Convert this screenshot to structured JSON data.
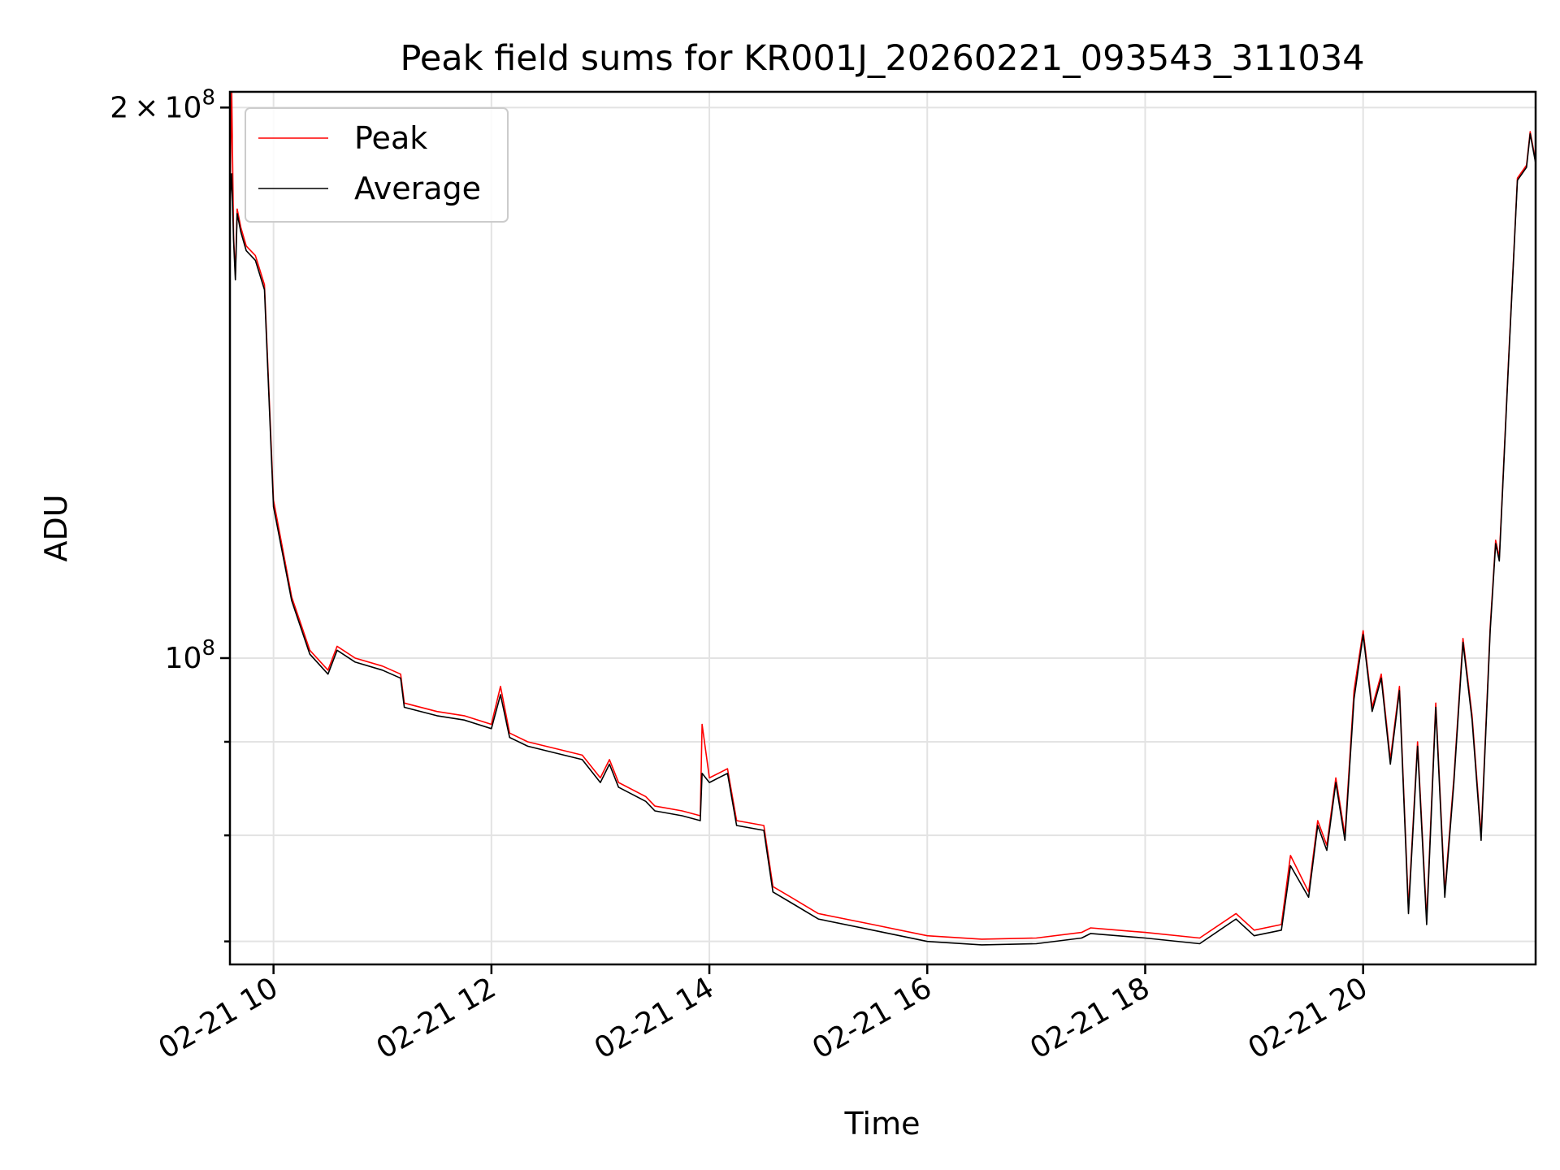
{
  "chart_data": {
    "type": "line",
    "title": "Peak field sums for KR001J_20260221_093543_311034",
    "xlabel": "Time",
    "ylabel": "ADU",
    "yscale": "log",
    "ylim": [
      68000000,
      204000000
    ],
    "xlim": [
      "2026-02-21 09:36",
      "2026-02-21 21:35"
    ],
    "grid": true,
    "legend_position": "upper-left",
    "x_ticks": [
      "02-21 10",
      "02-21 12",
      "02-21 14",
      "02-21 16",
      "02-21 18",
      "02-21 20"
    ],
    "x_tick_values": [
      "2026-02-21 10:00",
      "2026-02-21 12:00",
      "2026-02-21 14:00",
      "2026-02-21 16:00",
      "2026-02-21 18:00",
      "2026-02-21 20:00"
    ],
    "y_ticks": [
      {
        "value": 200000000,
        "mantissa": "2",
        "times": "×",
        "base": "10",
        "exp": "8"
      },
      {
        "value": 100000000,
        "mantissa": "",
        "times": "",
        "base": "10",
        "exp": "8"
      }
    ],
    "y_minor_ticks": [
      70000000,
      80000000,
      90000000
    ],
    "series": [
      {
        "name": "Peak",
        "color": "#ff0000",
        "x": [
          "2026-02-21 09:36",
          "2026-02-21 09:37",
          "2026-02-21 09:38",
          "2026-02-21 09:39",
          "2026-02-21 09:40",
          "2026-02-21 09:42",
          "2026-02-21 09:45",
          "2026-02-21 09:50",
          "2026-02-21 09:55",
          "2026-02-21 10:00",
          "2026-02-21 10:10",
          "2026-02-21 10:20",
          "2026-02-21 10:30",
          "2026-02-21 10:35",
          "2026-02-21 10:45",
          "2026-02-21 11:00",
          "2026-02-21 11:10",
          "2026-02-21 11:12",
          "2026-02-21 11:30",
          "2026-02-21 11:45",
          "2026-02-21 12:00",
          "2026-02-21 12:05",
          "2026-02-21 12:10",
          "2026-02-21 12:20",
          "2026-02-21 12:40",
          "2026-02-21 12:50",
          "2026-02-21 13:00",
          "2026-02-21 13:05",
          "2026-02-21 13:10",
          "2026-02-21 13:25",
          "2026-02-21 13:30",
          "2026-02-21 13:45",
          "2026-02-21 13:55",
          "2026-02-21 13:56",
          "2026-02-21 14:00",
          "2026-02-21 14:10",
          "2026-02-21 14:15",
          "2026-02-21 14:30",
          "2026-02-21 14:35",
          "2026-02-21 14:45",
          "2026-02-21 15:00",
          "2026-02-21 15:30",
          "2026-02-21 16:00",
          "2026-02-21 16:30",
          "2026-02-21 17:00",
          "2026-02-21 17:25",
          "2026-02-21 17:30",
          "2026-02-21 18:00",
          "2026-02-21 18:30",
          "2026-02-21 18:50",
          "2026-02-21 19:00",
          "2026-02-21 19:15",
          "2026-02-21 19:20",
          "2026-02-21 19:30",
          "2026-02-21 19:35",
          "2026-02-21 19:40",
          "2026-02-21 19:45",
          "2026-02-21 19:50",
          "2026-02-21 19:55",
          "2026-02-21 20:00",
          "2026-02-21 20:05",
          "2026-02-21 20:10",
          "2026-02-21 20:15",
          "2026-02-21 20:20",
          "2026-02-21 20:25",
          "2026-02-21 20:30",
          "2026-02-21 20:35",
          "2026-02-21 20:40",
          "2026-02-21 20:45",
          "2026-02-21 20:50",
          "2026-02-21 20:55",
          "2026-02-21 21:00",
          "2026-02-21 21:05",
          "2026-02-21 21:10",
          "2026-02-21 21:13",
          "2026-02-21 21:15",
          "2026-02-21 21:20",
          "2026-02-21 21:25",
          "2026-02-21 21:30",
          "2026-02-21 21:32",
          "2026-02-21 21:35"
        ],
        "values": [
          178000000,
          204000000,
          170000000,
          162000000,
          176000000,
          172000000,
          168000000,
          166000000,
          160000000,
          122000000,
          108000000,
          101000000,
          98500000,
          101500000,
          100000000,
          99000000,
          98000000,
          94500000,
          93500000,
          93000000,
          92000000,
          96500000,
          91000000,
          90000000,
          89000000,
          88500000,
          86000000,
          88000000,
          85500000,
          84000000,
          83000000,
          82500000,
          82000000,
          92000000,
          86000000,
          87000000,
          81500000,
          81000000,
          75000000,
          74000000,
          72500000,
          71500000,
          70500000,
          70200000,
          70300000,
          70800000,
          71200000,
          70800000,
          70300000,
          72500000,
          71000000,
          71500000,
          78000000,
          74500000,
          81500000,
          79000000,
          86000000,
          80000000,
          96000000,
          103500000,
          94000000,
          98000000,
          88000000,
          96500000,
          73000000,
          90000000,
          72000000,
          94500000,
          74500000,
          86000000,
          102500000,
          93000000,
          80000000,
          104000000,
          116000000,
          113500000,
          145000000,
          183000000,
          186000000,
          194000000,
          187000000
        ]
      },
      {
        "name": "Average",
        "color": "#000000",
        "x": [
          "2026-02-21 09:36",
          "2026-02-21 09:37",
          "2026-02-21 09:38",
          "2026-02-21 09:39",
          "2026-02-21 09:40",
          "2026-02-21 09:42",
          "2026-02-21 09:45",
          "2026-02-21 09:50",
          "2026-02-21 09:55",
          "2026-02-21 10:00",
          "2026-02-21 10:10",
          "2026-02-21 10:20",
          "2026-02-21 10:30",
          "2026-02-21 10:35",
          "2026-02-21 10:45",
          "2026-02-21 11:00",
          "2026-02-21 11:10",
          "2026-02-21 11:12",
          "2026-02-21 11:30",
          "2026-02-21 11:45",
          "2026-02-21 12:00",
          "2026-02-21 12:05",
          "2026-02-21 12:10",
          "2026-02-21 12:20",
          "2026-02-21 12:40",
          "2026-02-21 12:50",
          "2026-02-21 13:00",
          "2026-02-21 13:05",
          "2026-02-21 13:10",
          "2026-02-21 13:25",
          "2026-02-21 13:30",
          "2026-02-21 13:45",
          "2026-02-21 13:55",
          "2026-02-21 13:56",
          "2026-02-21 14:00",
          "2026-02-21 14:10",
          "2026-02-21 14:15",
          "2026-02-21 14:30",
          "2026-02-21 14:35",
          "2026-02-21 14:45",
          "2026-02-21 15:00",
          "2026-02-21 15:30",
          "2026-02-21 16:00",
          "2026-02-21 16:30",
          "2026-02-21 17:00",
          "2026-02-21 17:25",
          "2026-02-21 17:30",
          "2026-02-21 18:00",
          "2026-02-21 18:30",
          "2026-02-21 18:50",
          "2026-02-21 19:00",
          "2026-02-21 19:15",
          "2026-02-21 19:20",
          "2026-02-21 19:30",
          "2026-02-21 19:35",
          "2026-02-21 19:40",
          "2026-02-21 19:45",
          "2026-02-21 19:50",
          "2026-02-21 19:55",
          "2026-02-21 20:00",
          "2026-02-21 20:05",
          "2026-02-21 20:10",
          "2026-02-21 20:15",
          "2026-02-21 20:20",
          "2026-02-21 20:25",
          "2026-02-21 20:30",
          "2026-02-21 20:35",
          "2026-02-21 20:40",
          "2026-02-21 20:45",
          "2026-02-21 20:50",
          "2026-02-21 20:55",
          "2026-02-21 21:00",
          "2026-02-21 21:05",
          "2026-02-21 21:10",
          "2026-02-21 21:13",
          "2026-02-21 21:15",
          "2026-02-21 21:20",
          "2026-02-21 21:25",
          "2026-02-21 21:30",
          "2026-02-21 21:32",
          "2026-02-21 21:35"
        ],
        "values": [
          177000000,
          184000000,
          169000000,
          161000000,
          175000000,
          171000000,
          167000000,
          165000000,
          159000000,
          121000000,
          107500000,
          100500000,
          98000000,
          101000000,
          99500000,
          98500000,
          97500000,
          94000000,
          93000000,
          92500000,
          91500000,
          95500000,
          90500000,
          89500000,
          88500000,
          88000000,
          85500000,
          87500000,
          85000000,
          83500000,
          82500000,
          82000000,
          81500000,
          86500000,
          85500000,
          86500000,
          81000000,
          80500000,
          74500000,
          73500000,
          72000000,
          71000000,
          70000000,
          69700000,
          69800000,
          70300000,
          70700000,
          70300000,
          69800000,
          72000000,
          70500000,
          71000000,
          77000000,
          74000000,
          81000000,
          78500000,
          85500000,
          79500000,
          95000000,
          103000000,
          93500000,
          97500000,
          87500000,
          96000000,
          72500000,
          89500000,
          71500000,
          94000000,
          74000000,
          85500000,
          102000000,
          92500000,
          79500000,
          103500000,
          115500000,
          113000000,
          144500000,
          182500000,
          185500000,
          193500000,
          186500000
        ]
      }
    ]
  }
}
